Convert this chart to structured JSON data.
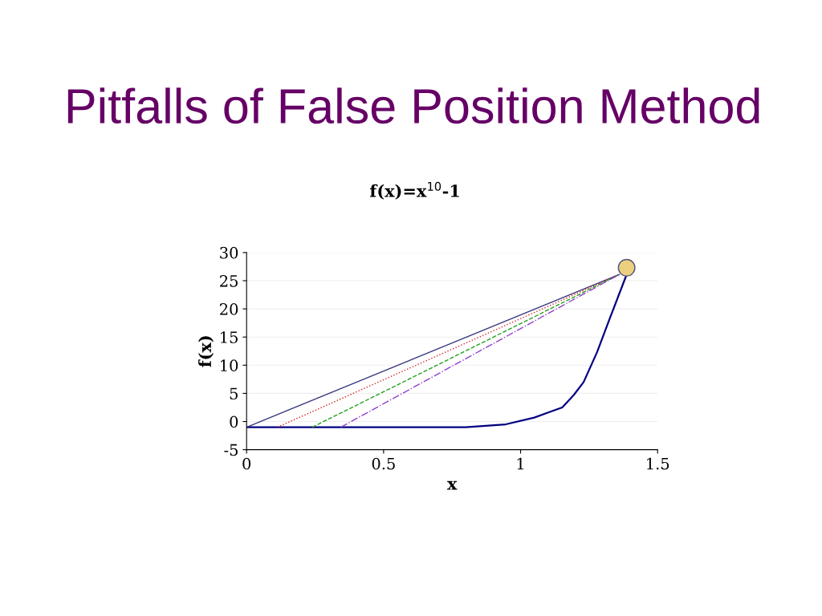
{
  "chart_data": {
    "type": "line",
    "title": "Pitfalls of False Position Method",
    "subtitle": "f(x)=x$^{10}$-1",
    "xlabel": "x",
    "ylabel": "f(x)",
    "xlim": [
      0,
      1.5
    ],
    "xticks": [
      0,
      0.5,
      1,
      1.5
    ],
    "ylim": [
      -5,
      30
    ],
    "yticks": [
      -5,
      0,
      5,
      10,
      15,
      20,
      25,
      30
    ],
    "grid": "y",
    "series": [
      {
        "color": "#000080",
        "x": [
          0,
          0.8,
          0.946,
          1.05,
          1.095,
          1.152,
          1.194,
          1.23,
          1.279,
          1.327,
          1.387
        ],
        "values": [
          -1,
          -1,
          -0.5,
          0.7,
          1.5,
          2.5,
          4.7,
          7.0,
          12.3,
          18.5,
          26.1
        ],
        "line_style": "solid"
      },
      {
        "color": "#3a3a80",
        "x": [
          0,
          1.36
        ],
        "values": [
          -1,
          26.1
        ],
        "line_style": "solid"
      },
      {
        "color": "#d02020",
        "x": [
          0.113,
          1.36
        ],
        "values": [
          -1,
          26.1
        ],
        "line_style": "dotted"
      },
      {
        "color": "#20a020",
        "x": [
          0.24,
          1.36
        ],
        "values": [
          -1,
          26.1
        ],
        "line_style": "dashed"
      },
      {
        "color": "#9040d0",
        "x": [
          0.344,
          1.36
        ],
        "values": [
          -1,
          26.1
        ],
        "line_style": "dashdot"
      },
      {
        "type": "scatter",
        "color": "#ecd080",
        "x": [
          1.387
        ],
        "values": [
          27.3
        ],
        "marker": "circle"
      }
    ]
  }
}
